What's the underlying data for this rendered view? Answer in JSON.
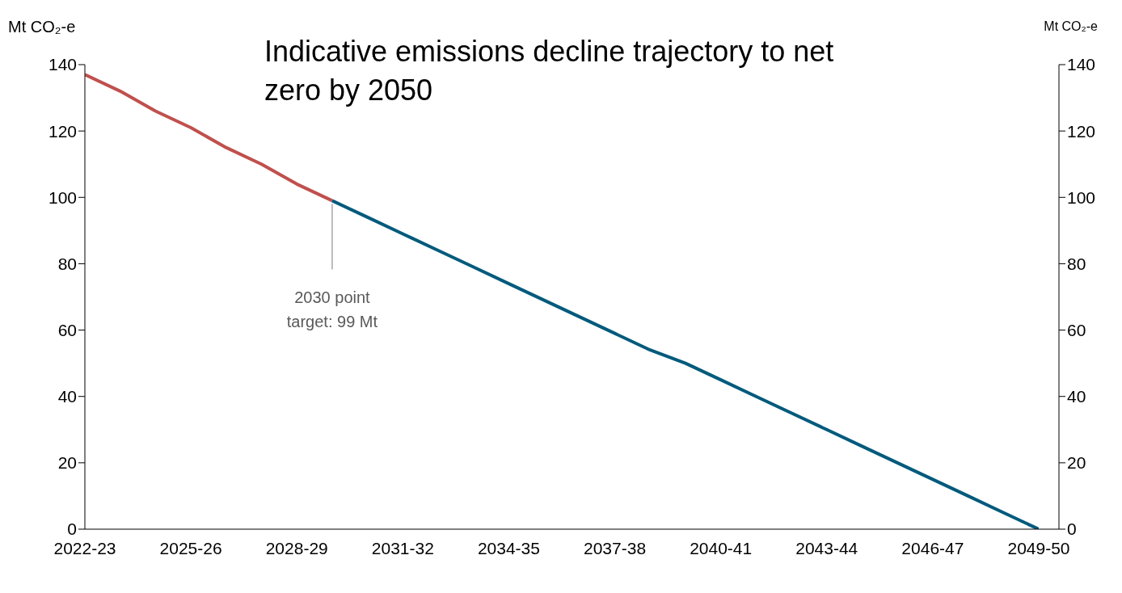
{
  "chart_data": {
    "type": "line",
    "title": "Indicative emissions decline trajectory to net zero by 2050",
    "ylabel": "Mt CO₂-e",
    "y2label": "Mt CO₂-e",
    "categories": [
      "2022-23",
      null,
      null,
      "2025-26",
      null,
      null,
      "2028-29",
      null,
      null,
      "2031-32",
      null,
      null,
      "2034-35",
      null,
      null,
      "2037-38",
      null,
      null,
      "2040-41",
      null,
      null,
      "2043-44",
      null,
      null,
      "2046-47",
      null,
      null,
      "2049-50"
    ],
    "series": [
      {
        "color": "#c0504d",
        "values": [
          137,
          132,
          126,
          121,
          115,
          110,
          104,
          99,
          null,
          null,
          null,
          null,
          null,
          null,
          null,
          null,
          null,
          null,
          null,
          null,
          null,
          null,
          null,
          null,
          null,
          null,
          null,
          null
        ]
      },
      {
        "color": "#005a7c",
        "values": [
          null,
          null,
          null,
          null,
          null,
          null,
          null,
          99,
          94,
          89,
          84,
          79,
          74,
          69,
          64,
          59,
          54,
          50,
          45,
          40,
          35,
          30,
          25,
          20,
          15,
          10,
          5,
          0
        ]
      }
    ],
    "ylim": [
      0,
      140
    ],
    "yticks": [
      0,
      20,
      40,
      60,
      80,
      100,
      120,
      140
    ],
    "y2lim": [
      0,
      140
    ],
    "y2ticks": [
      0,
      20,
      40,
      60,
      80,
      100,
      120,
      140
    ],
    "annotations": [
      {
        "text": "2030 point\ntarget: 99 Mt",
        "y": 99
      }
    ],
    "marker": "none",
    "line_style": "solid"
  }
}
